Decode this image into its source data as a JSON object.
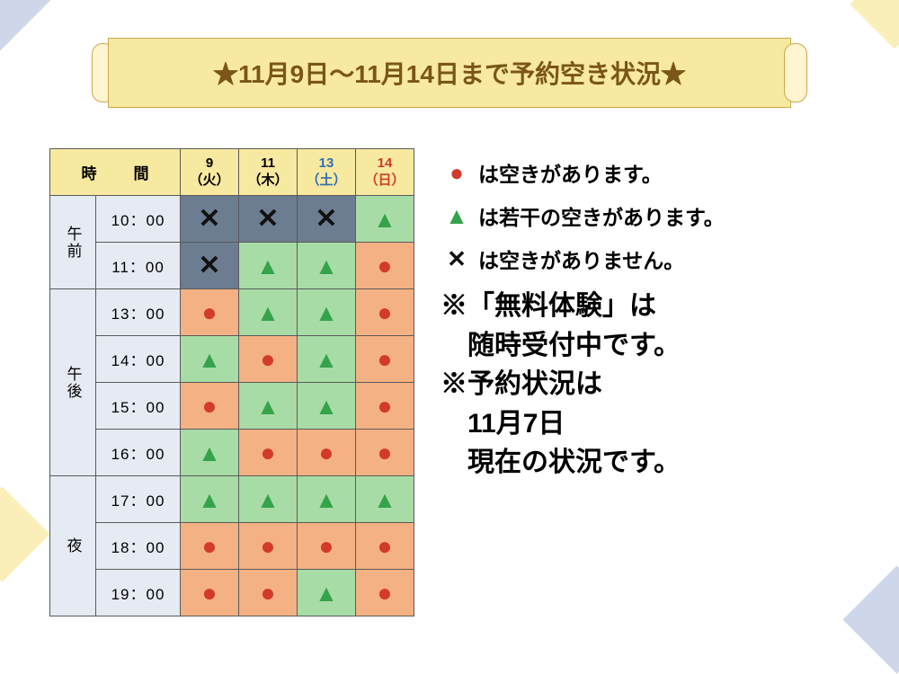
{
  "banner": {
    "title": "★11月9日～11月14日まで予約空き状況★"
  },
  "table": {
    "time_header": "時　間",
    "days": [
      {
        "num": "9",
        "dow": "（火）",
        "cls": ""
      },
      {
        "num": "11",
        "dow": "（木）",
        "cls": ""
      },
      {
        "num": "13",
        "dow": "（土）",
        "cls": "sat"
      },
      {
        "num": "14",
        "dow": "（日）",
        "cls": "sun"
      }
    ],
    "periods": [
      {
        "label": "午前",
        "rows": [
          {
            "time": "10：00",
            "cells": [
              "x",
              "x",
              "x",
              "tri"
            ]
          },
          {
            "time": "11：00",
            "cells": [
              "x",
              "tri",
              "tri",
              "circ"
            ]
          }
        ]
      },
      {
        "label": "午後",
        "rows": [
          {
            "time": "13：00",
            "cells": [
              "circ",
              "tri",
              "tri",
              "circ"
            ]
          },
          {
            "time": "14：00",
            "cells": [
              "tri",
              "circ",
              "tri",
              "circ"
            ]
          },
          {
            "time": "15：00",
            "cells": [
              "circ",
              "tri",
              "tri",
              "circ"
            ]
          },
          {
            "time": "16：00",
            "cells": [
              "tri",
              "circ",
              "circ",
              "circ"
            ]
          }
        ]
      },
      {
        "label": "夜",
        "rows": [
          {
            "time": "17：00",
            "cells": [
              "tri",
              "tri",
              "tri",
              "tri"
            ]
          },
          {
            "time": "18：00",
            "cells": [
              "circ",
              "circ",
              "circ",
              "circ"
            ]
          },
          {
            "time": "19：00",
            "cells": [
              "circ",
              "circ",
              "tri",
              "circ"
            ]
          }
        ]
      }
    ]
  },
  "legend": {
    "circ": "は空きがあります。",
    "tri": "は若干の空きがあります。",
    "x": "は空きがありません。",
    "note1a": "※「無料体験」は",
    "note1b": "　随時受付中です。",
    "note2a": "※予約状況は",
    "note2b": "　11月7日",
    "note2c": "　現在の状況です。"
  },
  "style": {
    "symbol_map": {
      "x": {
        "glyph": "✕",
        "cls": "ico-x",
        "bg": "bg-full"
      },
      "tri": {
        "glyph": "▲",
        "cls": "ico-tri",
        "bg": "bg-part"
      },
      "circ": {
        "glyph": "●",
        "cls": "ico-circ",
        "bg": "bg-open"
      }
    }
  }
}
